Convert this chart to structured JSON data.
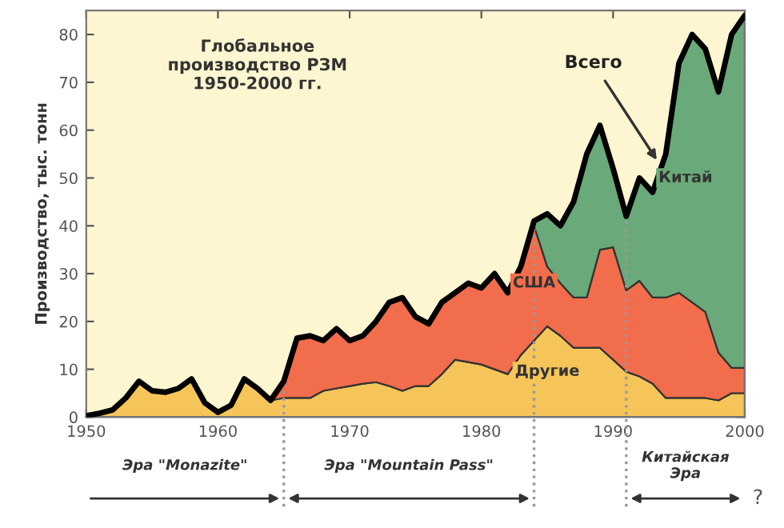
{
  "chart_data": {
    "type": "area",
    "stacked": true,
    "title": "Глобальное\nпроизводство РЗМ\n1950-2000 гг.",
    "ylabel": "Производство, тыс. тонн",
    "x": [
      1950,
      1951,
      1952,
      1953,
      1954,
      1955,
      1956,
      1957,
      1958,
      1959,
      1960,
      1961,
      1962,
      1963,
      1964,
      1965,
      1966,
      1967,
      1968,
      1969,
      1970,
      1971,
      1972,
      1973,
      1974,
      1975,
      1976,
      1977,
      1978,
      1979,
      1980,
      1981,
      1982,
      1983,
      1984,
      1985,
      1986,
      1987,
      1988,
      1989,
      1990,
      1991,
      1992,
      1993,
      1994,
      1995,
      1996,
      1997,
      1998,
      1999,
      2000
    ],
    "series": [
      {
        "name": "Другие",
        "color": "#f5c55a",
        "values": [
          0.3,
          0.8,
          1.5,
          4,
          7.5,
          5.5,
          5.2,
          6,
          8,
          3,
          1,
          2.5,
          8,
          6,
          3.5,
          4,
          4,
          4,
          5.5,
          6,
          6.5,
          7,
          7.3,
          6.5,
          5.5,
          6.5,
          6.5,
          9,
          12,
          11.5,
          11,
          10,
          9,
          13,
          16,
          19,
          17,
          14.5,
          14.5,
          14.5,
          12,
          9.5,
          8.5,
          7,
          4,
          4,
          4,
          4,
          3.5,
          5,
          5
        ]
      },
      {
        "name": "США",
        "color": "#f26d4b",
        "values": [
          0,
          0,
          0,
          0,
          0,
          0,
          0,
          0,
          0,
          0,
          0,
          0,
          0,
          0,
          0,
          3.5,
          12.5,
          13,
          10.5,
          12.5,
          9.5,
          10,
          12.7,
          17.5,
          19.5,
          14.5,
          13,
          15,
          14,
          16.5,
          16,
          20,
          17,
          18.5,
          24,
          12.5,
          11,
          10.5,
          10.5,
          20.5,
          23.5,
          17,
          20,
          18,
          21,
          22,
          20,
          18,
          10,
          5.3,
          5.3
        ]
      },
      {
        "name": "Китай",
        "color": "#6aaa7a",
        "values": [
          0,
          0,
          0,
          0,
          0,
          0,
          0,
          0,
          0,
          0,
          0,
          0,
          0,
          0,
          0,
          0,
          0,
          0,
          0,
          0,
          0,
          0,
          0,
          0,
          0,
          0,
          0,
          0,
          0,
          0,
          0,
          0,
          0,
          0,
          1,
          11,
          12,
          20,
          30,
          26,
          16.5,
          15.5,
          21.5,
          22,
          30,
          48,
          56,
          55,
          54.5,
          69.7,
          73.7
        ]
      }
    ],
    "xlim": [
      1950,
      2000
    ],
    "ylim": [
      0,
      85
    ],
    "xticks": [
      1950,
      1960,
      1970,
      1980,
      1990,
      2000
    ],
    "yticks": [
      0,
      10,
      20,
      30,
      40,
      50,
      60,
      70,
      80
    ],
    "grid": false,
    "legend": false,
    "ref_lines": [
      {
        "axis": "x",
        "value": 1965,
        "color": "#999999",
        "line_style": "dotted"
      },
      {
        "axis": "x",
        "value": 1984,
        "color": "#999999",
        "line_style": "dotted"
      },
      {
        "axis": "x",
        "value": 1991,
        "color": "#999999",
        "line_style": "dotted"
      }
    ],
    "annotations": [
      {
        "text": "Всего",
        "x": 1993.5,
        "y": 53
      },
      "Эра \"Monazite\"",
      "Эра \"Mountain Pass\"",
      "Китайская\nЭра",
      "?"
    ]
  }
}
